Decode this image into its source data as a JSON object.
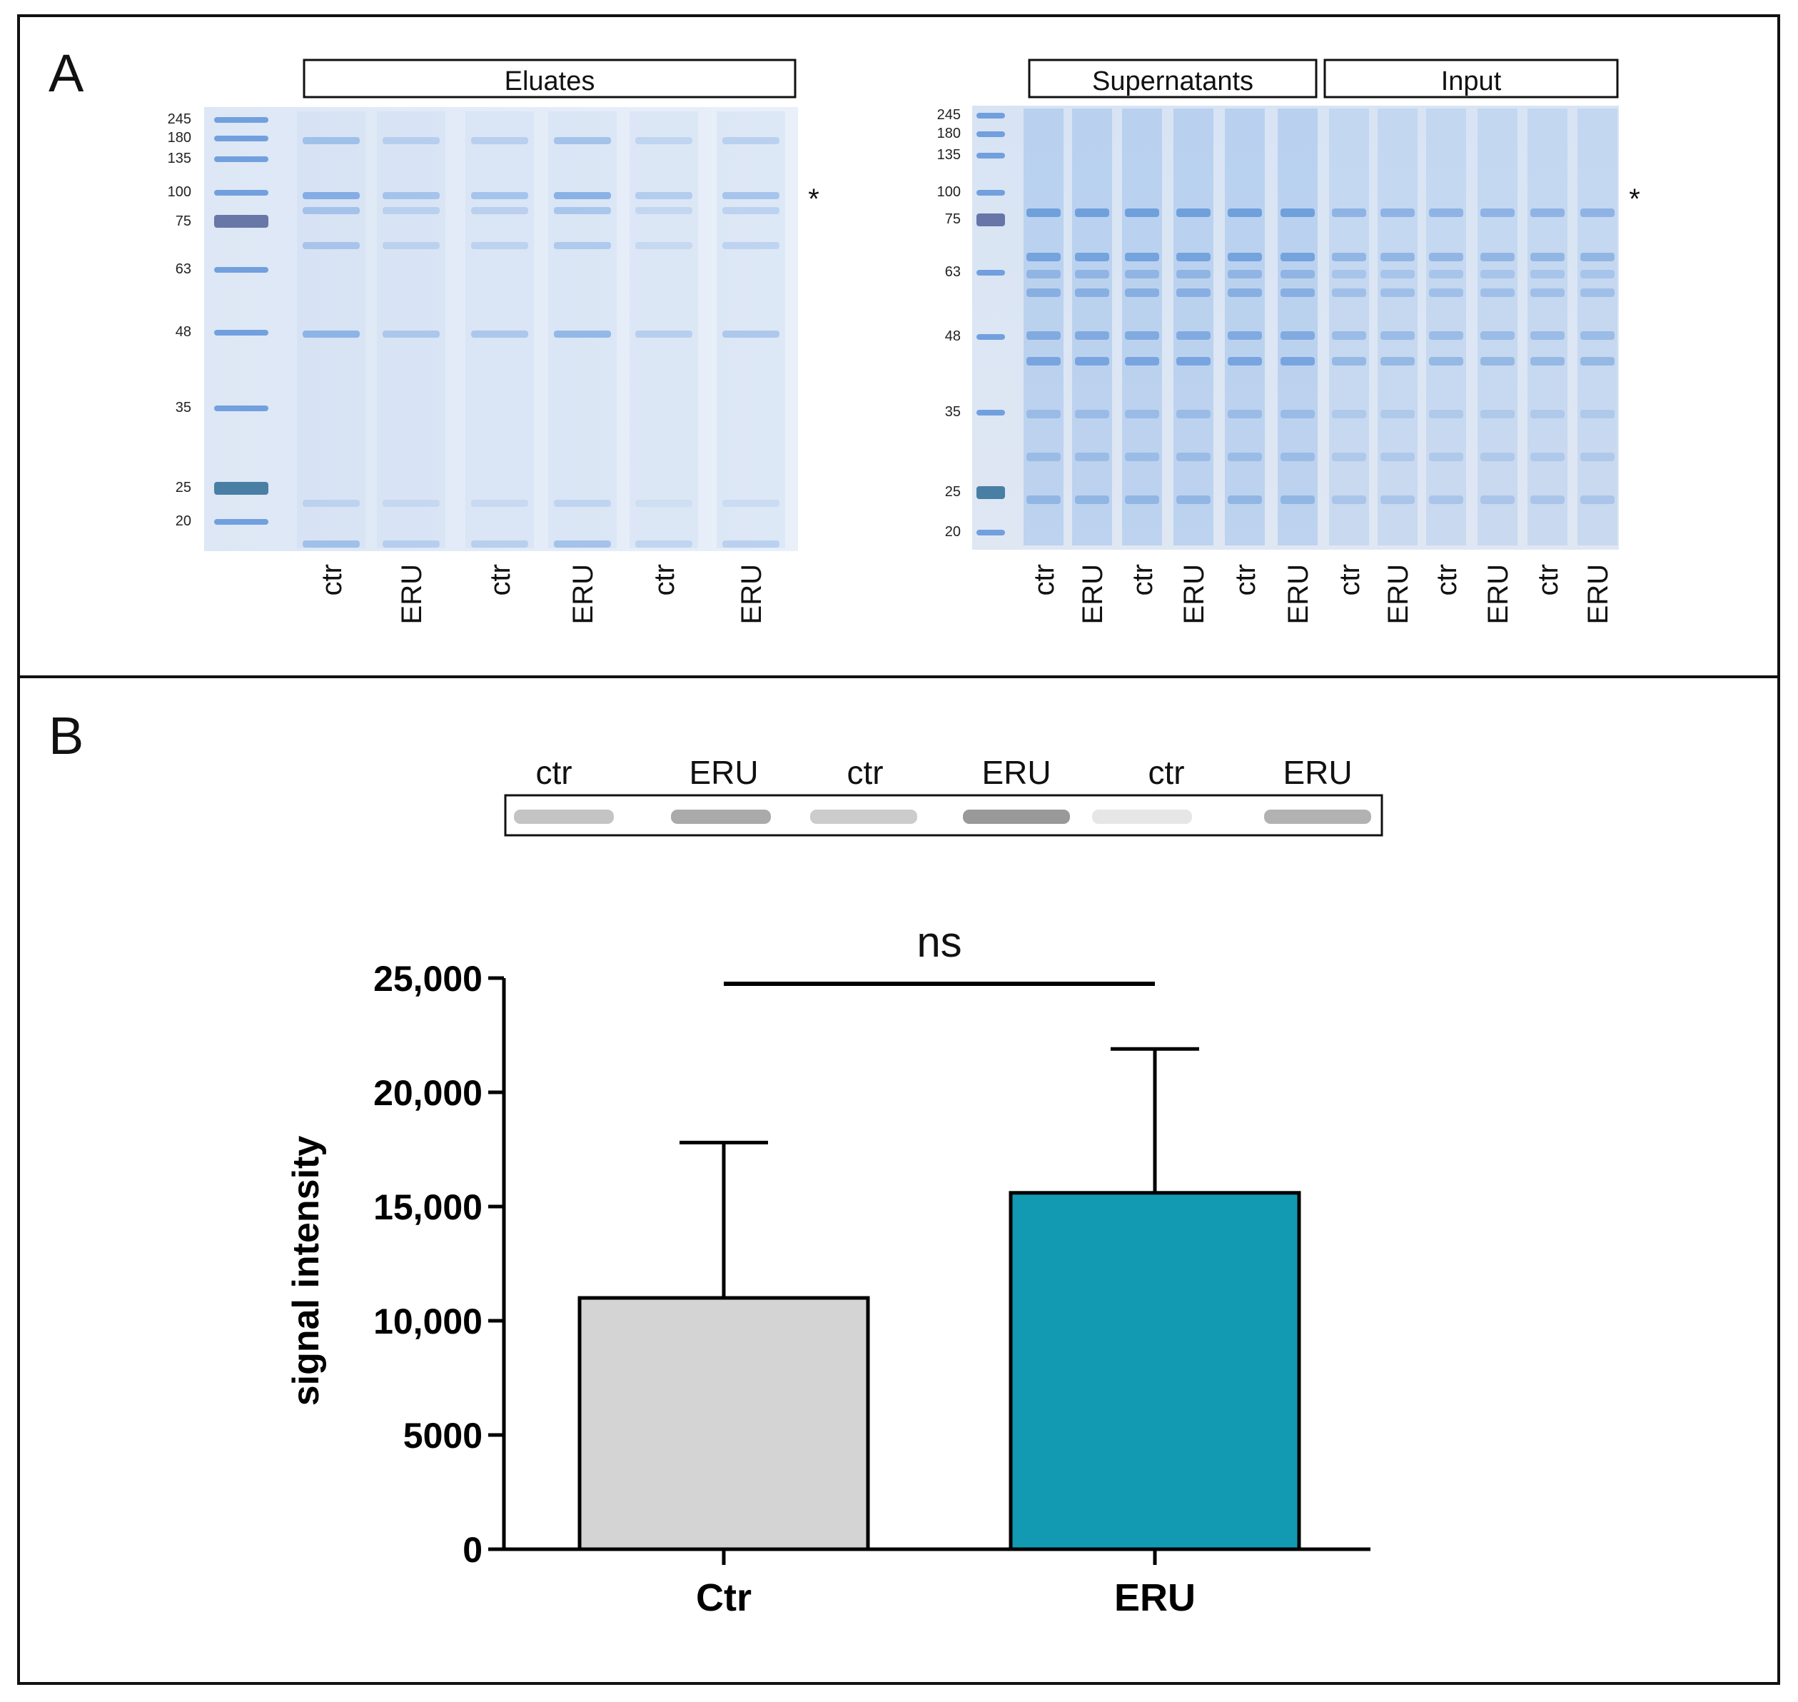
{
  "panel_a": {
    "label": "A",
    "left_gel": {
      "header": "Eluates",
      "marker_labels": [
        "245",
        "180",
        "135",
        "100",
        "75",
        "63",
        "48",
        "35",
        "25",
        "20"
      ],
      "lane_labels": [
        "ctr",
        "ERU",
        "ctr",
        "ERU",
        "ctr",
        "ERU"
      ],
      "asterisk": "*"
    },
    "right_gel": {
      "header_supernatants": "Supernatants",
      "header_input": "Input",
      "marker_labels": [
        "245",
        "180",
        "135",
        "100",
        "75",
        "63",
        "48",
        "35",
        "25",
        "20"
      ],
      "lane_labels": [
        "ctr",
        "ERU",
        "ctr",
        "ERU",
        "ctr",
        "ERU",
        "ctr",
        "ERU",
        "ctr",
        "ERU",
        "ctr",
        "ERU"
      ],
      "asterisk": "*"
    }
  },
  "panel_b": {
    "label": "B",
    "blot_labels": [
      "ctr",
      "ERU",
      "ctr",
      "ERU",
      "ctr",
      "ERU"
    ],
    "significance": "ns",
    "colors": {
      "ctr_bar": "#d4d4d4",
      "eru_bar": "#129ab2"
    }
  },
  "chart_data": {
    "type": "bar",
    "categories": [
      "Ctr",
      "ERU"
    ],
    "values": [
      11000,
      15600
    ],
    "error_upper": [
      17800,
      21900
    ],
    "ylabel": "signal intensity",
    "xlabel": "",
    "ylim": [
      0,
      25000
    ],
    "yticks": [
      0,
      5000,
      10000,
      15000,
      20000,
      25000
    ],
    "ytick_labels": [
      "0",
      "5000",
      "10,000",
      "15,000",
      "20,000",
      "25,000"
    ],
    "annotation": "ns",
    "colors": [
      "#d4d4d4",
      "#129ab2"
    ]
  }
}
